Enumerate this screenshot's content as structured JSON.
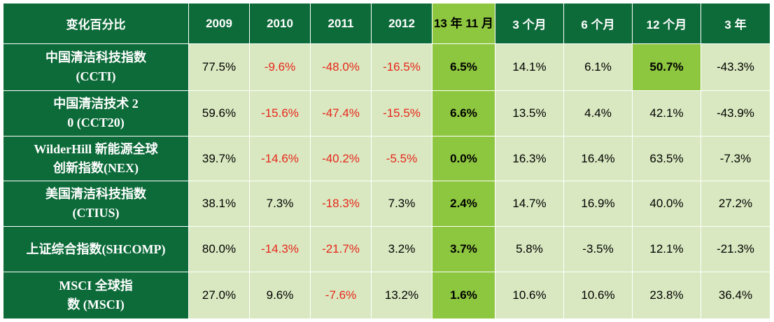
{
  "chart_data": {
    "type": "table",
    "title": "",
    "header_label": "变化百分比",
    "columns": [
      "2009",
      "2010",
      "2011",
      "2012",
      "13 年 11 月",
      "3 个月",
      "6 个月",
      "12 个月",
      "3 年"
    ],
    "highlight_column_index": 4,
    "rows": [
      {
        "name": "中国清洁科技指数 (CCTI)",
        "values": [
          "77.5%",
          "-9.6%",
          "-48.0%",
          "-16.5%",
          "6.5%",
          "14.1%",
          "6.1%",
          "50.7%",
          "-43.3%"
        ],
        "highlight_cells": [
          7
        ]
      },
      {
        "name": "中国清洁技术 20 (CCT20)",
        "values": [
          "59.6%",
          "-15.6%",
          "-47.4%",
          "-15.5%",
          "6.6%",
          "13.5%",
          "4.4%",
          "42.1%",
          "-43.9%"
        ],
        "highlight_cells": []
      },
      {
        "name": "WilderHill 新能源全球创新指数(NEX)",
        "values": [
          "39.7%",
          "-14.6%",
          "-40.2%",
          "-5.5%",
          "0.0%",
          "16.3%",
          "16.4%",
          "63.5%",
          "-7.3%"
        ],
        "highlight_cells": []
      },
      {
        "name": "美国清洁科技指数 (CTIUS)",
        "values": [
          "38.1%",
          "7.3%",
          "-18.3%",
          "7.3%",
          "2.4%",
          "14.7%",
          "16.9%",
          "40.0%",
          "27.2%"
        ],
        "highlight_cells": []
      },
      {
        "name": "上证综合指数(SHCOMP)",
        "values": [
          "80.0%",
          "-14.3%",
          "-21.7%",
          "3.2%",
          "3.7%",
          "5.8%",
          "-3.5%",
          "12.1%",
          "-21.3%"
        ],
        "highlight_cells": []
      },
      {
        "name": "MSCI 全球指数 (MSCI)",
        "values": [
          "27.0%",
          "9.6%",
          "-7.6%",
          "13.2%",
          "1.6%",
          "10.6%",
          "10.6%",
          "23.8%",
          "36.4%"
        ],
        "highlight_cells": []
      }
    ],
    "red_negative_columns": [
      1,
      2,
      3
    ],
    "group_breaks_before_rows": [
      3,
      5
    ],
    "colors": {
      "header_bg": "#0d6b3a",
      "cell_bg": "#d9e8c0",
      "highlight_bg": "#8dc63f",
      "negative_text": "#e8261c"
    }
  }
}
